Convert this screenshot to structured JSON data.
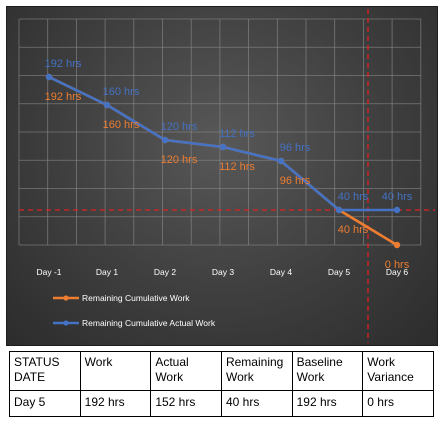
{
  "chart_data": {
    "type": "line",
    "categories": [
      "Day -1",
      "Day 1",
      "Day 2",
      "Day 3",
      "Day 4",
      "Day 5",
      "Day 6"
    ],
    "series": [
      {
        "name": "Remaining Cumulative Work",
        "color": "#ed7d31",
        "values": [
          192,
          160,
          120,
          112,
          96,
          40,
          0
        ],
        "labels": [
          "192 hrs",
          "160 hrs",
          "120 hrs",
          "112 hrs",
          "96 hrs",
          "40 hrs",
          "0 hrs"
        ]
      },
      {
        "name": "Remaining Cumulative Actual Work",
        "color": "#4472c4",
        "values": [
          192,
          160,
          120,
          112,
          96,
          40,
          40
        ],
        "labels": [
          "192 hrs",
          "160 hrs",
          "120 hrs",
          "112 hrs",
          "96 hrs",
          "40 hrs",
          "40 hrs"
        ]
      }
    ],
    "ylim": [
      0,
      240
    ],
    "reference_lines": {
      "horizontal_value": 40,
      "vertical_category": "Day 5",
      "color": "#e02020",
      "style": "dashed"
    },
    "grid": true,
    "legend_position": "bottom-left",
    "background": "#3a3a3a"
  },
  "table": {
    "headers": [
      "STATUS DATE",
      "Work",
      "Actual Work",
      "Remaining Work",
      "Baseline Work",
      "Work Variance"
    ],
    "rows": [
      [
        "Day 5",
        "192 hrs",
        "152 hrs",
        "40 hrs",
        "192 hrs",
        "0 hrs"
      ]
    ]
  }
}
